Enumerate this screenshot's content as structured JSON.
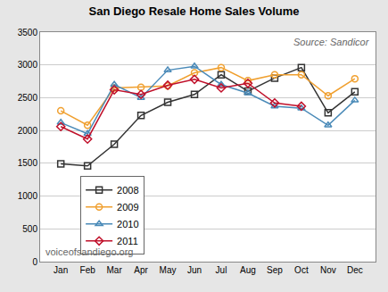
{
  "chart_data": {
    "type": "line",
    "title": "San Diego Resale Home Sales Volume",
    "categories": [
      "Jan",
      "Feb",
      "Mar",
      "Apr",
      "May",
      "Jun",
      "Jul",
      "Aug",
      "Sep",
      "Oct",
      "Nov",
      "Dec"
    ],
    "series": [
      {
        "name": "2008",
        "color": "#333333",
        "marker": "square",
        "values": [
          1490,
          1460,
          1790,
          2230,
          2430,
          2550,
          2850,
          2600,
          2800,
          2960,
          2270,
          2590
        ]
      },
      {
        "name": "2009",
        "color": "#f0a030",
        "marker": "circle",
        "values": [
          2300,
          2080,
          2650,
          2660,
          2680,
          2880,
          2960,
          2760,
          2850,
          2850,
          2530,
          2790
        ]
      },
      {
        "name": "2010",
        "color": "#4a8ab8",
        "marker": "triangle-up",
        "values": [
          2120,
          1950,
          2700,
          2500,
          2920,
          2980,
          2700,
          2570,
          2370,
          2340,
          2080,
          2460
        ]
      },
      {
        "name": "2011",
        "color": "#c0102a",
        "marker": "diamond",
        "values": [
          2060,
          1870,
          2620,
          2550,
          2690,
          2780,
          2650,
          2720,
          2420,
          2370,
          null,
          null
        ]
      }
    ],
    "ylim": [
      0,
      3500
    ],
    "yticks": [
      0,
      500,
      1000,
      1500,
      2000,
      2500,
      3000,
      3500
    ],
    "grid": true,
    "legend": "lower left",
    "annotations": [
      {
        "text": "Source: Sandicor"
      },
      {
        "text": "voiceofsandiego.org"
      }
    ]
  }
}
